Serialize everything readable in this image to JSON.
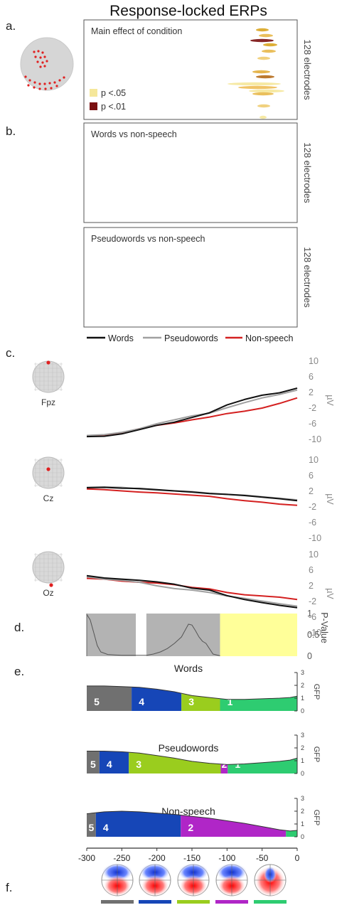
{
  "title": "Response-locked ERPs",
  "panel_labels": [
    "a.",
    "b.",
    "c.",
    "d.",
    "e.",
    "f."
  ],
  "electrodes_label": "128 electrodes",
  "colors": {
    "words": "#111111",
    "pseudowords": "#a0a0a0",
    "nonspeech": "#d42020",
    "p05": "#f5e79a",
    "p01": "#7a0f10",
    "sig_gray": "#b3b3b3",
    "sig_yellow": "#ffff99"
  },
  "chart_data": [
    {
      "type": "heatmap",
      "panel": "a.",
      "title": "Main effect of condition",
      "ylabel": "128 electrodes",
      "legend": [
        {
          "label": "p <.05",
          "color": "#f5e79a"
        },
        {
          "label": "p <.01",
          "color": "#7a0f10"
        }
      ]
    },
    {
      "type": "heatmap",
      "panel": "b.",
      "title": "Words vs non-speech",
      "ylabel": "128 electrodes"
    },
    {
      "type": "heatmap",
      "panel": "b.",
      "title": "Pseudowords vs non-speech",
      "ylabel": "128 electrodes"
    },
    {
      "type": "line",
      "panel": "c.",
      "legend": [
        "Words",
        "Pseudowords",
        "Non-speech"
      ],
      "ylabel": "µV",
      "yticks": [
        10,
        6,
        2,
        -2,
        -6,
        -10
      ],
      "ylim": [
        -10,
        10
      ],
      "xlim": [
        -300,
        0
      ],
      "x": [
        -300,
        -275,
        -250,
        -225,
        -200,
        -175,
        -150,
        -125,
        -100,
        -75,
        -50,
        -25,
        0
      ],
      "electrodes": [
        {
          "name": "Fpz",
          "series": [
            {
              "name": "Words",
              "values": [
                -9.3,
                -9.2,
                -8.6,
                -7.5,
                -6.4,
                -5.6,
                -4.4,
                -3.2,
                -1.2,
                0.2,
                1.3,
                1.9,
                3.1
              ]
            },
            {
              "name": "Pseudowords",
              "values": [
                -9.0,
                -8.8,
                -8.2,
                -7.3,
                -6.0,
                -5.0,
                -4.0,
                -3.3,
                -1.9,
                -0.6,
                0.6,
                1.5,
                2.6
              ]
            },
            {
              "name": "Non-speech",
              "values": [
                -9.0,
                -9.0,
                -8.3,
                -7.3,
                -6.4,
                -5.8,
                -5.0,
                -4.3,
                -3.4,
                -2.8,
                -2.0,
                -0.8,
                0.6
              ]
            }
          ]
        },
        {
          "name": "Cz",
          "series": [
            {
              "name": "Words",
              "values": [
                2.9,
                3.0,
                2.8,
                2.7,
                2.4,
                2.1,
                1.8,
                1.4,
                1.2,
                0.9,
                0.5,
                0.1,
                -0.4
              ]
            },
            {
              "name": "Pseudowords",
              "values": [
                3.0,
                3.1,
                3.0,
                2.6,
                2.3,
                2.1,
                1.9,
                1.5,
                1.2,
                1.0,
                0.6,
                0.2,
                -0.2
              ]
            },
            {
              "name": "Non-speech",
              "values": [
                2.6,
                2.4,
                2.1,
                1.8,
                1.6,
                1.3,
                1.0,
                0.7,
                0.1,
                -0.4,
                -0.8,
                -1.3,
                -1.6
              ]
            }
          ]
        },
        {
          "name": "Oz",
          "series": [
            {
              "name": "Words",
              "values": [
                4.6,
                4.0,
                3.7,
                3.4,
                3.0,
                2.4,
                1.4,
                0.9,
                -0.5,
                -1.5,
                -2.3,
                -3.0,
                -3.6
              ]
            },
            {
              "name": "Pseudowords",
              "values": [
                4.3,
                3.7,
                3.4,
                2.9,
                2.0,
                1.3,
                0.9,
                0.3,
                -0.6,
                -1.2,
                -1.9,
                -2.6,
                -3.2
              ]
            },
            {
              "name": "Non-speech",
              "values": [
                3.9,
                3.7,
                3.2,
                2.9,
                2.7,
                2.3,
                1.6,
                1.2,
                0.3,
                -0.3,
                -0.6,
                -0.9,
                -1.5
              ]
            }
          ]
        }
      ]
    },
    {
      "type": "area",
      "panel": "d.",
      "ylabel": "P-Value",
      "yticks": [
        1,
        0.5,
        0
      ],
      "ylim": [
        0,
        1
      ],
      "xlim": [
        -300,
        0
      ],
      "gray_intervals": [
        [
          -300,
          -230
        ],
        [
          -215,
          -110
        ]
      ],
      "yellow_intervals": [
        [
          -110,
          0
        ]
      ],
      "x": [
        -300,
        -295,
        -290,
        -285,
        -280,
        -270,
        -260,
        -250,
        -240,
        -230,
        -215,
        -205,
        -195,
        -185,
        -175,
        -165,
        -160,
        -155,
        -150,
        -145,
        -140,
        -135,
        -130,
        -120,
        -110
      ],
      "values": [
        0.98,
        0.85,
        0.55,
        0.25,
        0.1,
        0.04,
        0.03,
        0.02,
        0.02,
        0.02,
        0.02,
        0.05,
        0.1,
        0.18,
        0.3,
        0.45,
        0.6,
        0.75,
        0.73,
        0.6,
        0.45,
        0.35,
        0.3,
        0.05,
        0.01
      ]
    },
    {
      "type": "area",
      "panel": "e.",
      "ylabel": "GFP",
      "yticks": [
        3,
        2,
        1,
        0
      ],
      "ylim": [
        0,
        3
      ],
      "xlim": [
        -300,
        0
      ],
      "xticks": [
        -300,
        -250,
        -200,
        -150,
        -100,
        -50,
        0
      ],
      "maps": [
        {
          "number": "1",
          "color": "#2ecc71"
        },
        {
          "number": "2",
          "color": "#b026c7"
        },
        {
          "number": "3",
          "color": "#9acd1e"
        },
        {
          "number": "4",
          "color": "#1646b7"
        },
        {
          "number": "5",
          "color": "#707070"
        }
      ],
      "conditions": [
        {
          "name": "Words",
          "x": [
            -300,
            -275,
            -250,
            -225,
            -200,
            -175,
            -150,
            -125,
            -100,
            -75,
            -50,
            -25,
            -10,
            0
          ],
          "gfp": [
            1.95,
            1.95,
            1.9,
            1.85,
            1.7,
            1.5,
            1.2,
            1.05,
            0.9,
            0.9,
            0.95,
            1.0,
            1.05,
            1.15
          ],
          "segments": [
            {
              "map": "5",
              "start": -300,
              "end": -236
            },
            {
              "map": "4",
              "start": -236,
              "end": -165
            },
            {
              "map": "3",
              "start": -165,
              "end": -110
            },
            {
              "map": "1",
              "start": -110,
              "end": 0
            }
          ]
        },
        {
          "name": "Pseudowords",
          "x": [
            -300,
            -275,
            -250,
            -225,
            -200,
            -175,
            -150,
            -125,
            -100,
            -75,
            -50,
            -25,
            -10,
            0
          ],
          "gfp": [
            1.75,
            1.75,
            1.7,
            1.6,
            1.4,
            1.2,
            0.95,
            0.8,
            0.7,
            0.75,
            0.85,
            0.95,
            1.05,
            1.2
          ],
          "segments": [
            {
              "map": "5",
              "start": -300,
              "end": -282
            },
            {
              "map": "4",
              "start": -282,
              "end": -240
            },
            {
              "map": "3",
              "start": -240,
              "end": -109
            },
            {
              "map": "2",
              "start": -109,
              "end": -99
            },
            {
              "map": "1",
              "start": -99,
              "end": 0
            }
          ]
        },
        {
          "name": "Non-speech",
          "x": [
            -300,
            -275,
            -250,
            -225,
            -200,
            -175,
            -150,
            -125,
            -100,
            -75,
            -50,
            -25,
            -10,
            0
          ],
          "gfp": [
            1.8,
            1.95,
            2.0,
            1.95,
            1.85,
            1.75,
            1.6,
            1.45,
            1.25,
            1.05,
            0.8,
            0.55,
            0.45,
            0.5
          ],
          "segments": [
            {
              "map": "5",
              "start": -300,
              "end": -287
            },
            {
              "map": "4",
              "start": -287,
              "end": -166
            },
            {
              "map": "2",
              "start": -166,
              "end": -16
            },
            {
              "map": "1",
              "start": -16,
              "end": 0
            }
          ]
        }
      ]
    }
  ],
  "microstate_colors": [
    "#707070",
    "#1646b7",
    "#9acd1e",
    "#b026c7",
    "#2ecc71"
  ]
}
